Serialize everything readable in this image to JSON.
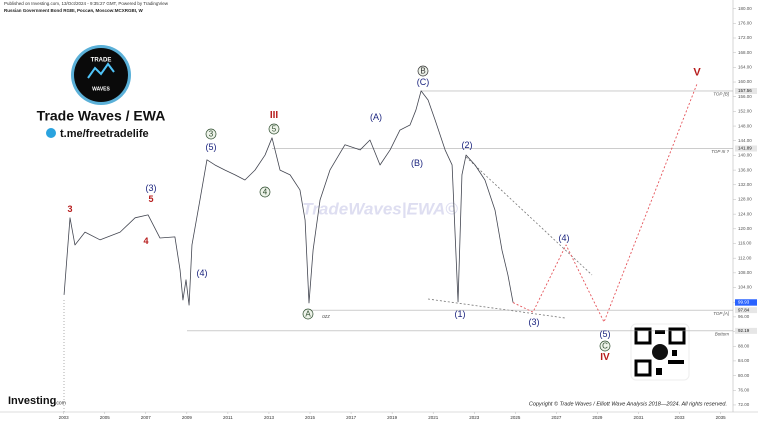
{
  "header": {
    "published": "Published on Investing.com, 13/Oct/2024 - 9:35:27 GMT, Powered by TradingView",
    "instrument": "Russian Government Bond RGBI, Россия, Moscow:MCXRGBI, W"
  },
  "brand": {
    "logo_top": "TRADE",
    "logo_bottom": "WAVES",
    "name": "Trade Waves / EWA",
    "link": "t.me/freetradelife",
    "watermark": "TradeWaves|EWA©",
    "site": "Investing",
    "site_suffix": ".com",
    "copyright": "Copyright © Trade Waves / Elliott Wave Analysis 2018—2024. All rights reserved."
  },
  "chart_data": {
    "type": "line",
    "xlim": [
      1999.9,
      2035.7
    ],
    "xticks": [
      2003,
      2005,
      2007,
      2009,
      2011,
      2013,
      2015,
      2017,
      2019,
      2021,
      2023,
      2025,
      2027,
      2029,
      2031,
      2033,
      2035
    ],
    "ylim": [
      70,
      182
    ],
    "yticks": [
      {
        "value": 72,
        "label": "72.00"
      },
      {
        "value": 76,
        "label": "76.00"
      },
      {
        "value": 80,
        "label": "80.00"
      },
      {
        "value": 84,
        "label": "84.00"
      },
      {
        "value": 88,
        "label": "88.00"
      },
      {
        "value": 92,
        "label": "92.00"
      },
      {
        "value": 96,
        "label": "96.00"
      },
      {
        "value": 100,
        "label": "100.00"
      },
      {
        "value": 104,
        "label": "104.00"
      },
      {
        "value": 108,
        "label": "108.00"
      },
      {
        "value": 112,
        "label": "112.00"
      },
      {
        "value": 116,
        "label": "116.00"
      },
      {
        "value": 120,
        "label": "120.00"
      },
      {
        "value": 124,
        "label": "124.00"
      },
      {
        "value": 128,
        "label": "128.00"
      },
      {
        "value": 132,
        "label": "132.00"
      },
      {
        "value": 136,
        "label": "136.00"
      },
      {
        "value": 140,
        "label": "140.00"
      },
      {
        "value": 144,
        "label": "144.00"
      },
      {
        "value": 148,
        "label": "148.00"
      },
      {
        "value": 152,
        "label": "152.00"
      },
      {
        "value": 156,
        "label": "156.00"
      },
      {
        "value": 160,
        "label": "160.00"
      },
      {
        "value": 164,
        "label": "164.00"
      },
      {
        "value": 168,
        "label": "168.00"
      },
      {
        "value": 172,
        "label": "172.00"
      },
      {
        "value": 176,
        "label": "176.00"
      },
      {
        "value": 180,
        "label": "180.00"
      }
    ],
    "grid": false,
    "series": [
      {
        "color": "#434651",
        "x": [
          2003.02,
          2003.31,
          2003.55,
          2004.04,
          2004.77,
          2005.75,
          2006.48,
          2007.11,
          2007.69,
          2008.42,
          2008.67,
          2008.81,
          2008.96,
          2009.11,
          2009.25,
          2009.64,
          2009.98,
          2010.37,
          2010.86,
          2011.35,
          2011.83,
          2012.32,
          2012.81,
          2013.15,
          2013.54,
          2014.03,
          2014.51,
          2014.76,
          2014.95,
          2015.15,
          2015.49,
          2015.97,
          2016.7,
          2017.44,
          2017.92,
          2018.41,
          2018.9,
          2019.38,
          2019.87,
          2020.16,
          2020.41,
          2020.75,
          2021.09,
          2021.58,
          2021.92,
          2022.21,
          2022.4,
          2022.6,
          2023.04,
          2023.52,
          2024.01,
          2024.35,
          2024.64,
          2024.89
        ],
        "values": [
          102,
          123,
          115.6,
          119.1,
          117,
          119.1,
          123,
          123.8,
          117.5,
          117.8,
          108.8,
          100.6,
          106.1,
          99.2,
          115.6,
          127.9,
          138.8,
          137.4,
          136,
          134.7,
          133.3,
          136,
          140.1,
          144.8,
          136,
          134.7,
          130.6,
          122.4,
          99.8,
          114.2,
          127.9,
          136,
          142.9,
          141.5,
          144.2,
          137.4,
          141.5,
          146.9,
          148.3,
          152.4,
          157.6,
          155.1,
          149.7,
          141.5,
          137.4,
          100.1,
          134.7,
          140.1,
          137.4,
          133.3,
          125.1,
          114.2,
          107.4,
          99.9
        ]
      },
      {
        "color": "#e5545a",
        "dashed": true,
        "x": [
          2024.89,
          2025.86,
          2027.47,
          2029.32,
          2033.85
        ],
        "values": [
          99.9,
          97.3,
          115.6,
          94.6,
          159.5
        ]
      }
    ],
    "levels": [
      {
        "name": "TOP [B]",
        "value": 157.56
      },
      {
        "name": "TOP III ?",
        "value": 141.89
      },
      {
        "name": "TOP [A]",
        "value": 97.84
      },
      {
        "name": "Bottom",
        "value": 92.19
      }
    ],
    "last": 99.93,
    "annotations": [
      "3",
      "(3)",
      "5",
      "4",
      "(4)",
      "(5)",
      "3",
      "5",
      "III",
      "4",
      "A",
      "ozz",
      "(A)",
      "(B)",
      "B",
      "(C)",
      "(1)",
      "(2)",
      "(3)",
      "(4)",
      "(5)",
      "C",
      "IV",
      "V"
    ]
  }
}
